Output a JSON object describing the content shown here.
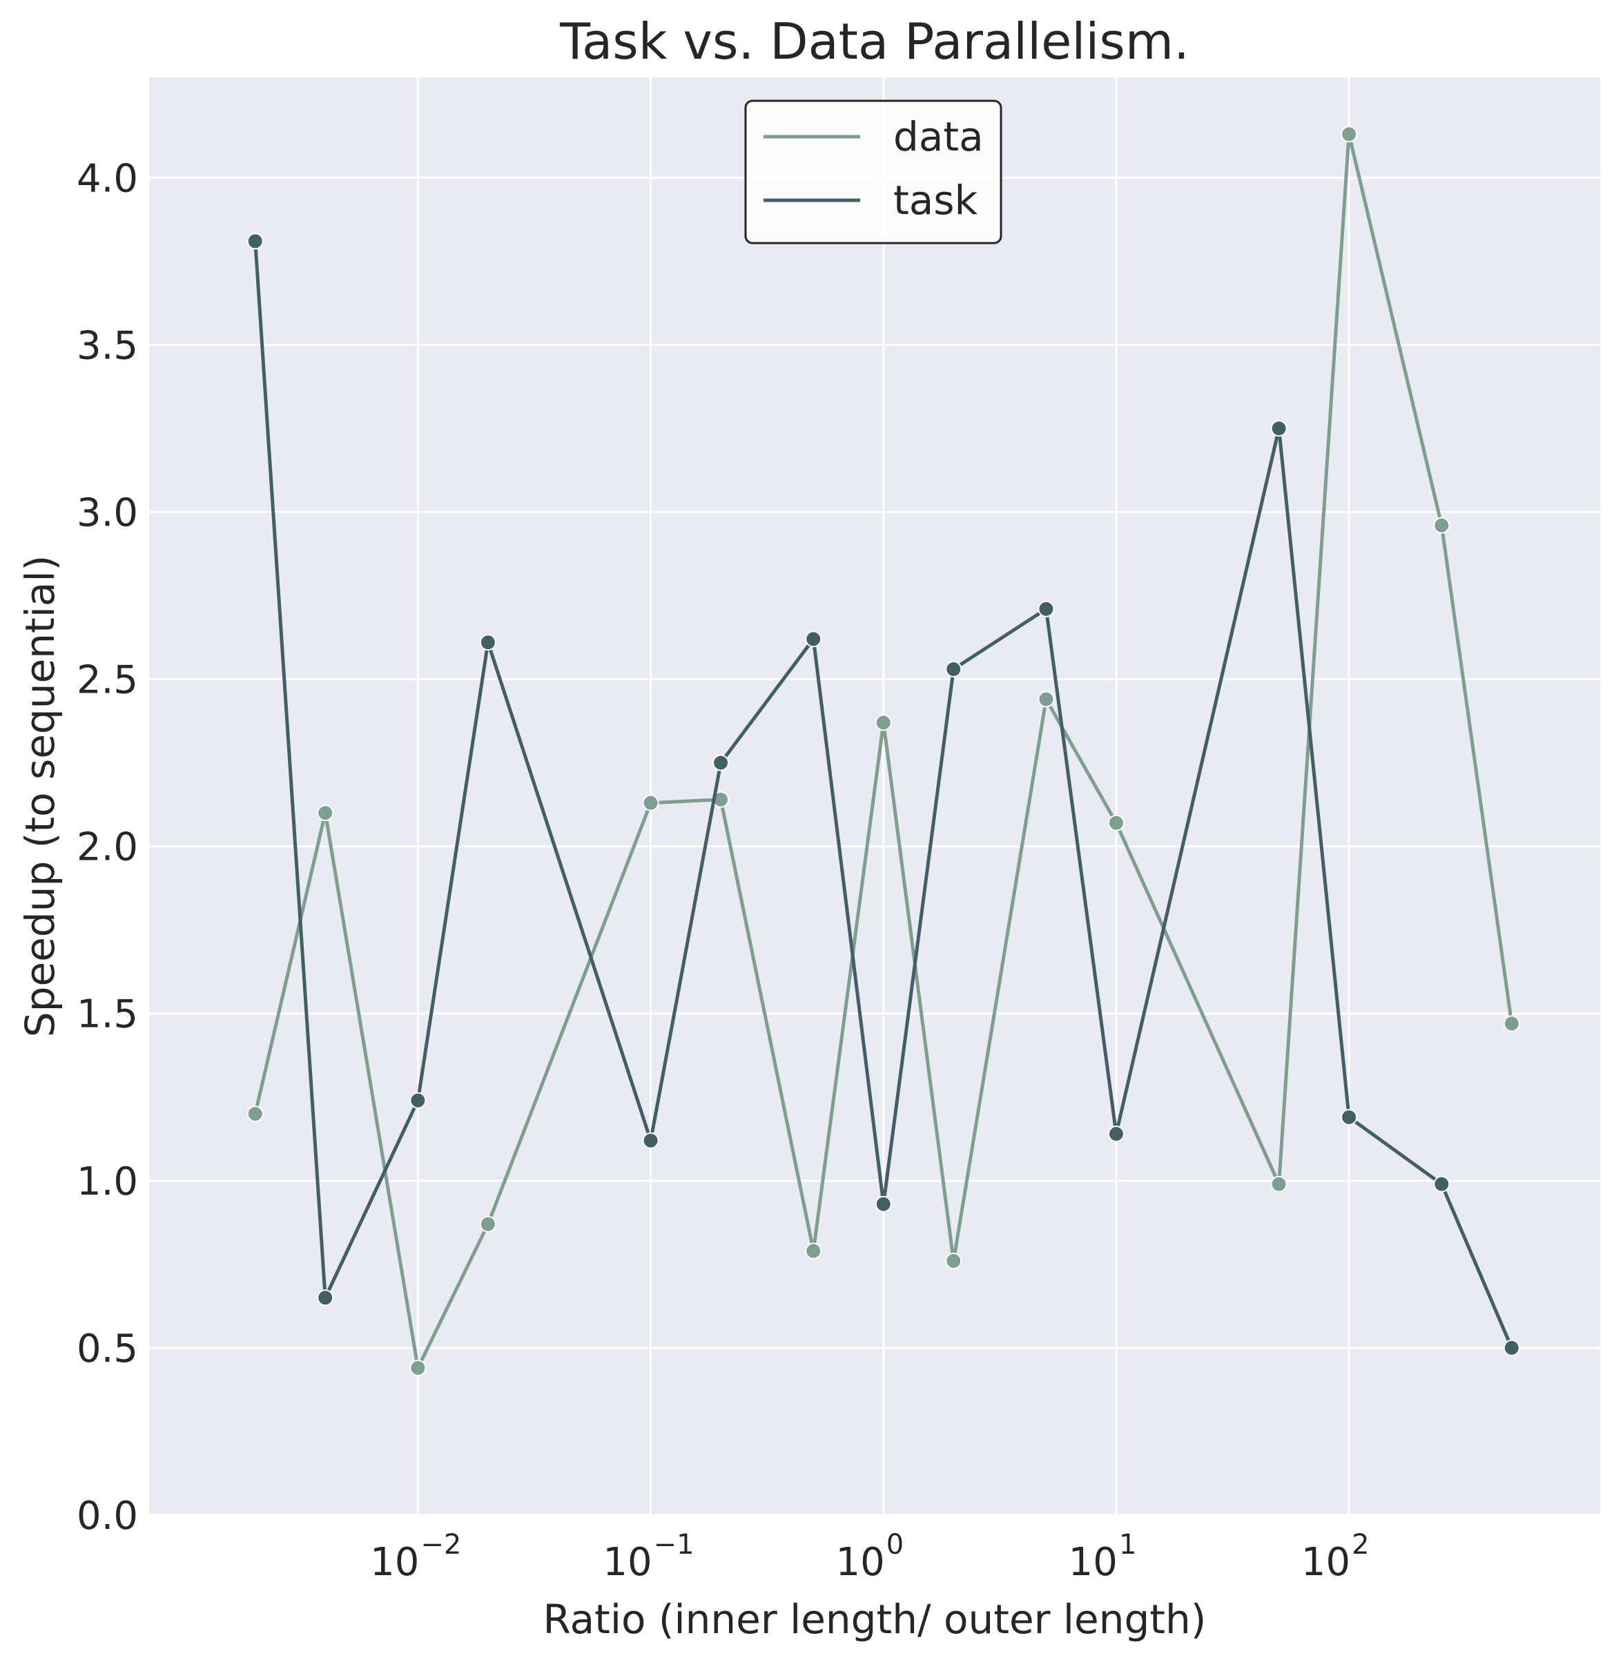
{
  "chart_data": {
    "type": "line",
    "title": "Task vs. Data Parallelism.",
    "xlabel": "Ratio (inner length/ outer length)",
    "ylabel": "Speedup (to sequential)",
    "xscale": "log",
    "xlim": [
      0.0007,
      1200
    ],
    "ylim": [
      0.0,
      4.3
    ],
    "grid": true,
    "legend_position": "top-center",
    "x_ticks": [
      {
        "base": "10",
        "exp": "−2",
        "value": 0.01
      },
      {
        "base": "10",
        "exp": "−1",
        "value": 0.1
      },
      {
        "base": "10",
        "exp": "0",
        "value": 1
      },
      {
        "base": "10",
        "exp": "1",
        "value": 10
      },
      {
        "base": "10",
        "exp": "2",
        "value": 100
      }
    ],
    "y_ticks": [
      "0.0",
      "0.5",
      "1.0",
      "1.5",
      "2.0",
      "2.5",
      "3.0",
      "3.5",
      "4.0"
    ],
    "x": [
      0.002,
      0.004,
      0.01,
      0.02,
      0.1,
      0.2,
      0.5,
      1,
      2,
      5,
      10,
      50,
      100,
      250,
      500
    ],
    "series": [
      {
        "name": "data",
        "color": "#7f9e92",
        "values": [
          1.2,
          2.1,
          0.44,
          0.87,
          2.13,
          2.14,
          0.79,
          2.37,
          0.76,
          2.44,
          2.07,
          0.99,
          4.13,
          2.96,
          1.47
        ]
      },
      {
        "name": "task",
        "color": "#435f66",
        "values": [
          3.81,
          0.65,
          1.24,
          2.61,
          1.12,
          2.25,
          2.62,
          0.93,
          2.53,
          2.71,
          1.14,
          3.25,
          1.19,
          0.99,
          0.5
        ]
      }
    ]
  }
}
